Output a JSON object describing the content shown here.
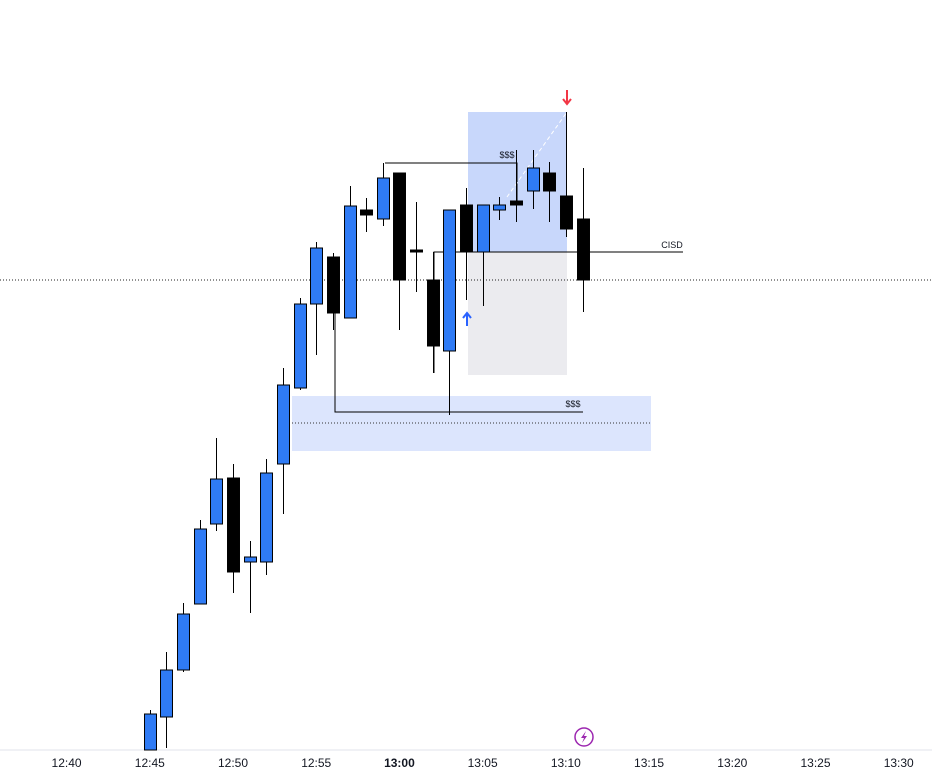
{
  "chart_data": {
    "type": "candlestick",
    "x": [
      "12:45",
      "12:46",
      "12:47",
      "12:48",
      "12:49",
      "12:50",
      "12:51",
      "12:52",
      "12:53",
      "12:54",
      "12:55",
      "12:56",
      "12:57",
      "12:58",
      "12:59",
      "13:00",
      "13:01",
      "13:02",
      "13:03",
      "13:04",
      "13:05",
      "13:06",
      "13:07",
      "13:08",
      "13:09",
      "13:10",
      "13:11"
    ],
    "open": [
      0,
      33,
      80,
      146,
      226,
      272,
      188,
      188,
      286,
      362,
      446,
      493,
      432,
      540,
      531,
      577,
      500,
      470,
      399,
      545,
      498,
      540,
      549,
      559,
      577,
      554,
      531
    ],
    "high": [
      40,
      98,
      147,
      230,
      312,
      286,
      209,
      291,
      382,
      452,
      508,
      497,
      564,
      552,
      587,
      577,
      548,
      498,
      540,
      562,
      545,
      553,
      600,
      600,
      588,
      638,
      582
    ],
    "low": [
      0,
      2,
      78,
      146,
      219,
      157,
      137,
      175,
      236,
      360,
      395,
      420,
      432,
      518,
      524,
      420,
      458,
      377,
      335,
      450,
      444,
      530,
      528,
      541,
      528,
      513,
      438
    ],
    "close": [
      36,
      80,
      136,
      221,
      271,
      178,
      193,
      277,
      365,
      446,
      502,
      437,
      544,
      535,
      572,
      470,
      498,
      404,
      540,
      498,
      545,
      545,
      545,
      582,
      559,
      521,
      470
    ],
    "up_color": "#2f7bf5",
    "down_color": "#000000",
    "xlim": [
      "12:36",
      "13:32"
    ],
    "xticks": [
      "12:40",
      "12:45",
      "12:50",
      "12:55",
      "13:00",
      "13:05",
      "13:10",
      "13:15",
      "13:20",
      "13:25",
      "13:30"
    ],
    "ylim": [
      0,
      750
    ],
    "annotations": [
      "$$$",
      "$$$",
      "CISD"
    ]
  }
}
